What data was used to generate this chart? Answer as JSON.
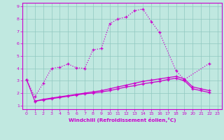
{
  "xlabel": "Windchill (Refroidissement éolien,°C)",
  "xlim": [
    -0.5,
    23.5
  ],
  "ylim": [
    0.7,
    9.3
  ],
  "xticks": [
    0,
    1,
    2,
    3,
    4,
    5,
    6,
    7,
    8,
    9,
    10,
    11,
    12,
    13,
    14,
    15,
    16,
    17,
    18,
    19,
    20,
    21,
    22,
    23
  ],
  "yticks": [
    1,
    2,
    3,
    4,
    5,
    6,
    7,
    8,
    9
  ],
  "background_color": "#c0e8e0",
  "grid_color": "#90c8c0",
  "line_color": "#cc00cc",
  "curve1_x": [
    0,
    1,
    2,
    3,
    4,
    5,
    6,
    7,
    8,
    9,
    10,
    11,
    12,
    13,
    14,
    15,
    16,
    18,
    19,
    22
  ],
  "curve1_y": [
    3.1,
    1.7,
    2.8,
    4.0,
    4.1,
    4.35,
    4.05,
    4.0,
    5.5,
    5.6,
    7.6,
    8.0,
    8.15,
    8.65,
    8.8,
    7.8,
    6.9,
    3.8,
    3.1,
    4.4
  ],
  "curve2_x": [
    0,
    1,
    2,
    3,
    4,
    5,
    6,
    7,
    8,
    9,
    10,
    11,
    12,
    13,
    14,
    15,
    16,
    17,
    18,
    19,
    20,
    21,
    22
  ],
  "curve2_y": [
    3.1,
    1.35,
    1.5,
    1.6,
    1.7,
    1.8,
    1.9,
    2.0,
    2.1,
    2.2,
    2.35,
    2.5,
    2.65,
    2.8,
    2.95,
    3.05,
    3.15,
    3.25,
    3.35,
    3.15,
    2.5,
    2.35,
    2.2
  ],
  "curve3_x": [
    1,
    2,
    3,
    4,
    5,
    6,
    7,
    8,
    9,
    10,
    11,
    12,
    13,
    14,
    15,
    16,
    17,
    18,
    19,
    20,
    21,
    22
  ],
  "curve3_y": [
    1.35,
    1.45,
    1.55,
    1.65,
    1.75,
    1.85,
    1.95,
    2.0,
    2.1,
    2.2,
    2.35,
    2.5,
    2.6,
    2.75,
    2.85,
    2.95,
    3.1,
    3.2,
    3.0,
    2.35,
    2.2,
    2.05
  ]
}
